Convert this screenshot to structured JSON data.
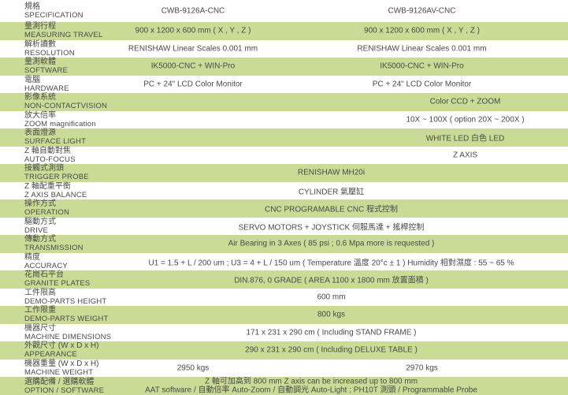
{
  "table_title": "CNC video measuring machine specification table",
  "colors": {
    "row_green": "#cadb95",
    "row_white": "#ffffff",
    "text_gray": "#4a4a4a"
  },
  "models": {
    "model_a": "CWB-9126A-CNC",
    "model_b": "CWB-9126AV-CNC"
  },
  "rows": [
    {
      "zh": "規格",
      "en": "SPECIFICATION",
      "value_a": "CWB-9126A-CNC",
      "value_b": "CWB-9126AV-CNC"
    },
    {
      "zh": "量測行程",
      "en": "MEASURING TRAVEL",
      "value_a": "900 x 1200 x 600 mm ( X , Y , Z )",
      "value_b": "900 x 1200 x 600 mm ( X , Y , Z )"
    },
    {
      "zh": "解析讀數",
      "en": "RESOLUTION",
      "value_a": "RENISHAW Linear Scales 0.001 mm",
      "value_b": "RENISHAW Linear Scales 0.001 mm"
    },
    {
      "zh": "量測軟體",
      "en": "SOFTWARE",
      "value_a": "IK5000-CNC + WIN-Pro",
      "value_b": "IK5000-CNC + WIN-Pro"
    },
    {
      "zh": "電腦",
      "en": "HARDWARE",
      "value_a": "PC + 24\" LCD Color Monitor",
      "value_b": "PC + 24\" LCD Color Monitor"
    },
    {
      "zh": "影像系統",
      "en": "NON-CONTACTVISION",
      "value": "Color CCD + ZOOM"
    },
    {
      "zh": "放大倍率",
      "en": "ZOOM magnification",
      "value": "10X ~ 100X ( option 20X ~ 200X )"
    },
    {
      "zh": "表面燈源",
      "en": "SURFACE LIGHT",
      "value": "WHITE LED 白色 LED"
    },
    {
      "zh": "Z 軸自動對焦",
      "en": "AUTO-FOCUS",
      "value": "Z AXIS"
    },
    {
      "zh": "接觸式測頭",
      "en": "TRIGGER PROBE",
      "value": "RENISHAW MH20i"
    },
    {
      "zh": "Z 軸配重平衡",
      "en": "Z AXIS BALANCE",
      "value": "CYLINDER 氣壓缸"
    },
    {
      "zh": "操作方式",
      "en": "OPERATION",
      "value": "CNC PROGRAMABLE CNC 程式控制"
    },
    {
      "zh": "驅動方式",
      "en": "DRIVE",
      "value": "SERVO MOTORS + JOYSTICK 伺服馬達 + 搖桿控制"
    },
    {
      "zh": "傳動方式",
      "en": "TRANSMISSION",
      "value": "Air Bearing in 3 Axes ( 85 psi ; 0.6 Mpa more is requested )"
    },
    {
      "zh": "精度",
      "en": "ACCURACY",
      "value": "U1 = 1.5 + L / 200 um ; U3 = 4 + L / 150 um ( Temperature 溫度 20°c ± 1 ) Humidity 相對濕度 : 55 ~ 65 %"
    },
    {
      "zh": "花崗石平台",
      "en": "GRANITE PLATES",
      "value": "DIN.876, 0 GRADE ( AREA 1100 x 1800 mm 放置面積 )"
    },
    {
      "zh": "工件限高",
      "en": "DEMO-PARTS HEIGHT",
      "value": "600 mm"
    },
    {
      "zh": "工作限重",
      "en": "DEMO-PARTS WEIGHT",
      "value": "800 kgs"
    },
    {
      "zh": "機器尺寸",
      "en": "MACHINE DIMENSIONS",
      "value": "171 x 231 x 290 cm ( Including STAND FRAME )"
    },
    {
      "zh": "外觀尺寸 (W x D x H)",
      "en": "APPEARANCE",
      "value": "290 x 231 x 290 cm ( Including DELUXE TABLE )"
    },
    {
      "zh": "機器重量 (W x D x H)",
      "en": "MACHINE WEIGHT",
      "value_a": "2950 kgs",
      "value_b": "2970 kgs"
    },
    {
      "zh": "選購配備 / 選購軟體",
      "en": "OPTION / SOFTWARE",
      "value_line1": "Z 軸可加高到 800 mm Z axis can be increased up to 800 mm",
      "value_line2": "AAT software / 自動倍率 Auto-Zoom / 自動調光 Auto-Light ; PH10T 測頭 / Programmable Probe"
    }
  ]
}
